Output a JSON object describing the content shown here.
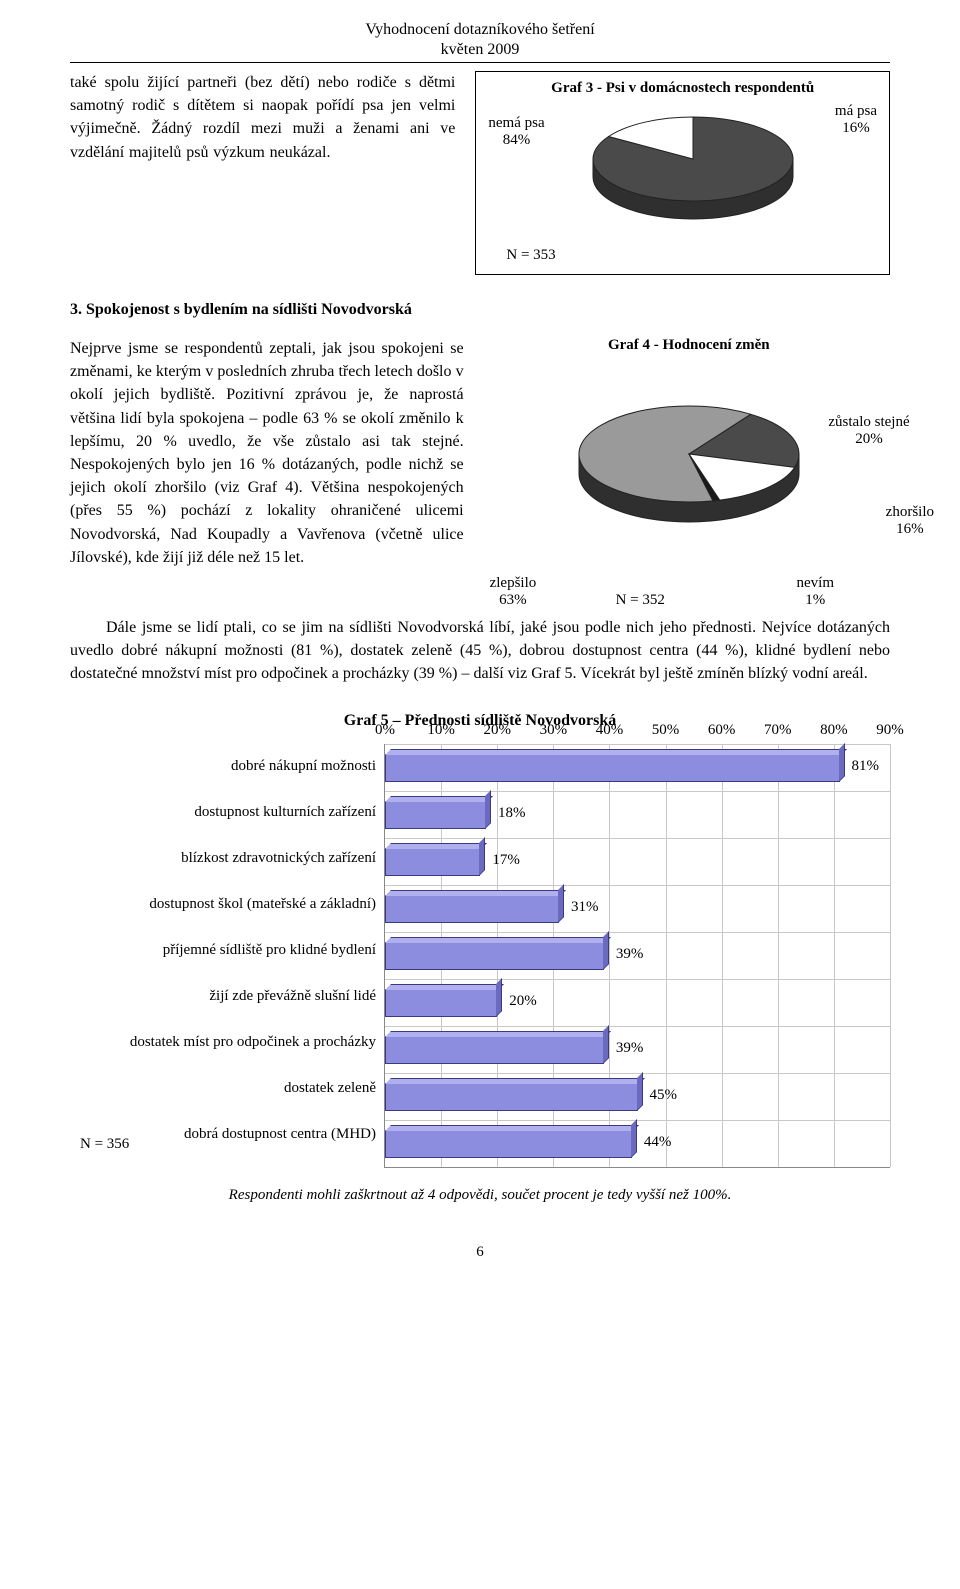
{
  "header": {
    "title": "Vyhodnocení dotazníkového šetření",
    "subtitle": "květen 2009"
  },
  "intro_left": "také spolu žijící partneři (bez dětí) nebo rodiče s dětmi samotný rodič s dítětem si naopak pořídí psa jen velmi výjimečně. Žádný rozdíl mezi muži a ženami ani ve vzdělání majitelů psů výzkum neukázal.",
  "graf3": {
    "title": "Graf 3 - Psi v domácnostech respondentů",
    "type": "pie",
    "slices": [
      {
        "label": "nemá psa",
        "pct": "84%",
        "value": 84,
        "color": "#4a4a4a"
      },
      {
        "label": "má psa",
        "pct": "16%",
        "value": 16,
        "color": "#ffffff"
      }
    ],
    "stroke": "#222222",
    "shadow": "#2f2f2f",
    "n_label": "N = 353"
  },
  "section3_heading": "3. Spokojenost s bydlením na sídlišti Novodvorská",
  "section3_left": "Nejprve jsme se respondentů zeptali, jak jsou spokojeni se změnami, ke kterým v posledních zhruba třech letech došlo v okolí jejich bydliště. Pozitivní zprávou je, že naprostá většina lidí byla spokojena – podle 63 % se okolí změnilo k lepšímu, 20 % uvedlo, že vše zůstalo asi tak stejné. Nespokojených bylo jen 16 % dotázaných, podle nichž se jejich okolí zhoršilo (viz Graf 4). Většina nespokojených (přes 55 %) pochází z lokality ohraničené ulicemi Novodvorská, Nad Koupadly a Vavřenova (včetně ulice Jílovské), kde žijí již déle než 15 let.",
  "graf4": {
    "title": "Graf 4 - Hodnocení změn",
    "type": "pie",
    "slices": [
      {
        "label": "zlepšilo",
        "pct": "63%",
        "value": 63,
        "color": "#9a9a9a"
      },
      {
        "label": "zůstalo stejné",
        "pct": "20%",
        "value": 20,
        "color": "#4a4a4a"
      },
      {
        "label": "zhoršilo",
        "pct": "16%",
        "value": 16,
        "color": "#ffffff"
      },
      {
        "label": "nevím",
        "pct": "1%",
        "value": 1,
        "color": "#1a1a1a"
      }
    ],
    "stroke": "#222222",
    "shadow": "#2f2f2f",
    "n_label": "N = 352"
  },
  "section3_cont": "Dále jsme se lidí ptali, co se jim na sídlišti Novodvorská líbí, jaké jsou podle nich jeho přednosti. Nejvíce dotázaných uvedlo dobré nákupní možnosti (81 %), dostatek zeleně (45 %), dobrou dostupnost centra (44 %), klidné bydlení nebo dostatečné množství míst pro odpočinek a procházky (39 %) – další viz Graf 5. Vícekrát byl ještě zmíněn blízký vodní areál.",
  "graf5": {
    "title": "Graf 5 – Přednosti sídliště Novodvorská",
    "type": "bar",
    "x_ticks": [
      "0%",
      "10%",
      "20%",
      "30%",
      "40%",
      "50%",
      "60%",
      "70%",
      "80%",
      "90%"
    ],
    "x_max": 90,
    "bar_color": "#8d8de0",
    "bar_top_color": "#b0b0ee",
    "bar_side_color": "#6a6ac0",
    "bar_border": "#3a3a80",
    "grid_color": "#c8c8c8",
    "items": [
      {
        "label": "dobré nákupní možnosti",
        "value": 81,
        "pct": "81%"
      },
      {
        "label": "dostupnost kulturních zařízení",
        "value": 18,
        "pct": "18%"
      },
      {
        "label": "blízkost zdravotnických zařízení",
        "value": 17,
        "pct": "17%"
      },
      {
        "label": "dostupnost škol (mateřské a základní)",
        "value": 31,
        "pct": "31%"
      },
      {
        "label": "příjemné sídliště pro klidné bydlení",
        "value": 39,
        "pct": "39%"
      },
      {
        "label": "žijí zde převážně slušní lidé",
        "value": 20,
        "pct": "20%"
      },
      {
        "label": "dostatek míst pro odpočinek a procházky",
        "value": 39,
        "pct": "39%"
      },
      {
        "label": "dostatek zeleně",
        "value": 45,
        "pct": "45%"
      },
      {
        "label": "dobrá dostupnost centra (MHD)",
        "value": 44,
        "pct": "44%"
      }
    ],
    "n_label": "N = 356"
  },
  "footnote": "Respondenti mohli zaškrtnout až 4 odpovědi, součet procent je tedy vyšší než 100%.",
  "page_number": "6"
}
